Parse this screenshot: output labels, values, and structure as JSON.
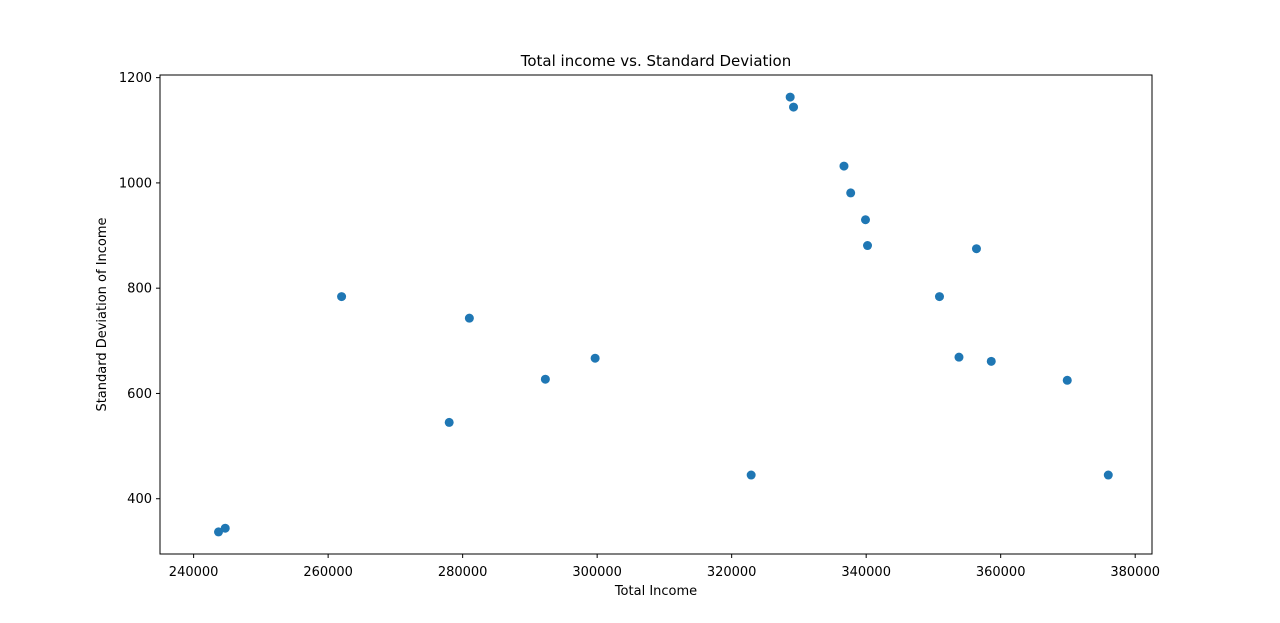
{
  "chart_data": {
    "type": "scatter",
    "title": "Total income vs. Standard Deviation",
    "xlabel": "Total Income",
    "ylabel": "Standard Deviation of Income",
    "xlim": [
      235000,
      382500
    ],
    "ylim": [
      295,
      1205
    ],
    "x_ticks": [
      240000,
      260000,
      280000,
      300000,
      320000,
      340000,
      360000,
      380000
    ],
    "x_tick_labels": [
      "240000",
      "260000",
      "280000",
      "300000",
      "320000",
      "340000",
      "360000",
      "380000"
    ],
    "y_ticks": [
      400,
      600,
      800,
      1000,
      1200
    ],
    "y_tick_labels": [
      "400",
      "600",
      "800",
      "1000",
      "1200"
    ],
    "grid": false,
    "marker_color": "#1f77b4",
    "points": [
      {
        "x": 243700,
        "y": 337
      },
      {
        "x": 244700,
        "y": 344
      },
      {
        "x": 262000,
        "y": 784
      },
      {
        "x": 278000,
        "y": 545
      },
      {
        "x": 281000,
        "y": 743
      },
      {
        "x": 292300,
        "y": 627
      },
      {
        "x": 299700,
        "y": 667
      },
      {
        "x": 322900,
        "y": 445
      },
      {
        "x": 328700,
        "y": 1163
      },
      {
        "x": 329200,
        "y": 1144
      },
      {
        "x": 336700,
        "y": 1032
      },
      {
        "x": 337700,
        "y": 981
      },
      {
        "x": 339900,
        "y": 930
      },
      {
        "x": 340200,
        "y": 881
      },
      {
        "x": 350900,
        "y": 784
      },
      {
        "x": 353800,
        "y": 669
      },
      {
        "x": 356400,
        "y": 875
      },
      {
        "x": 358600,
        "y": 661
      },
      {
        "x": 369900,
        "y": 625
      },
      {
        "x": 376000,
        "y": 445
      }
    ]
  }
}
